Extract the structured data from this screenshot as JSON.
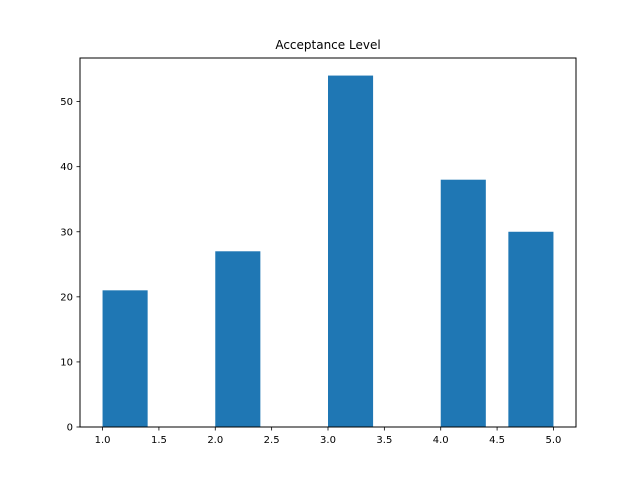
{
  "chart_data": {
    "type": "bar",
    "title": "Acceptance Level",
    "xlabel": "",
    "ylabel": "",
    "bin_width": 0.4,
    "bars": [
      {
        "x_start": 1.0,
        "value": 21
      },
      {
        "x_start": 2.0,
        "value": 27
      },
      {
        "x_start": 2.4,
        "value": 0
      },
      {
        "x_start": 3.0,
        "value": 54
      },
      {
        "x_start": 4.0,
        "value": 38
      },
      {
        "x_start": 4.6,
        "value": 30
      }
    ],
    "xlim": [
      0.8,
      5.2
    ],
    "ylim": [
      0,
      56.7
    ],
    "x_ticks": [
      1.0,
      1.5,
      2.0,
      2.5,
      3.0,
      3.5,
      4.0,
      4.5,
      5.0
    ],
    "x_tick_labels": [
      "1.0",
      "1.5",
      "2.0",
      "2.5",
      "3.0",
      "3.5",
      "4.0",
      "4.5",
      "5.0"
    ],
    "y_ticks": [
      0,
      10,
      20,
      30,
      40,
      50
    ],
    "y_tick_labels": [
      "0",
      "10",
      "20",
      "30",
      "40",
      "50"
    ],
    "bar_color": "#1f77b4",
    "grid": false,
    "legend": "none"
  }
}
